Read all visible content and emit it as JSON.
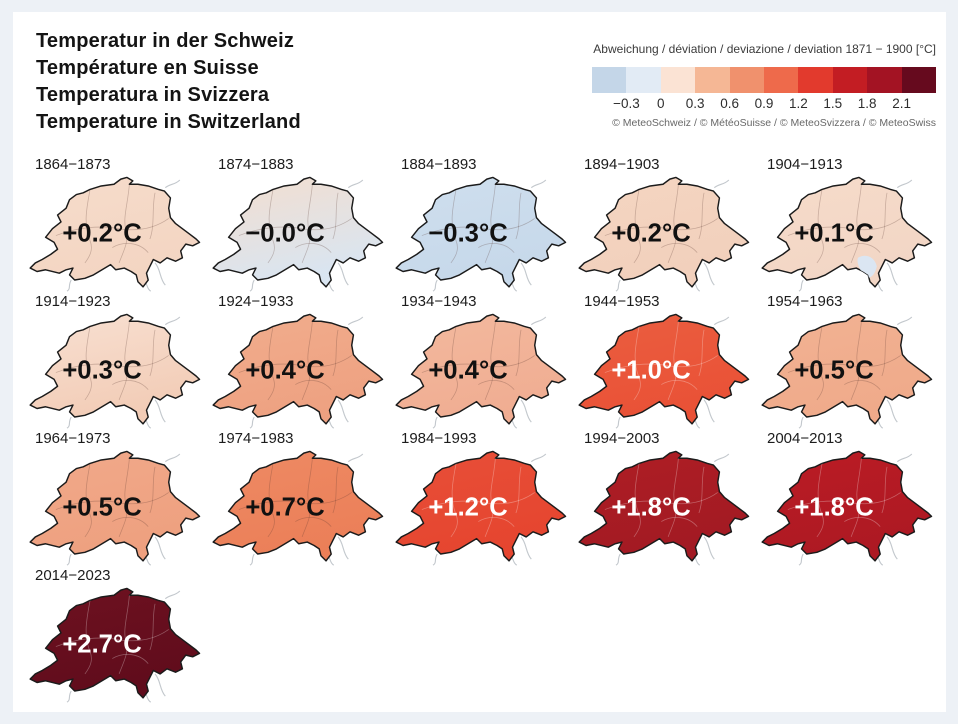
{
  "page": {
    "background": "#edf1f6",
    "card_background": "#ffffff"
  },
  "title": {
    "lines": [
      "Temperatur in der Schweiz",
      "Température en Suisse",
      "Temperatura in Svizzera",
      "Temperature in Switzerland"
    ]
  },
  "legend": {
    "title": "Abweichung / déviation / deviazione / deviation 1871 − 1900 [°C]",
    "ticks": [
      "−0.3",
      "0",
      "0.3",
      "0.6",
      "0.9",
      "1.2",
      "1.5",
      "1.8",
      "2.1"
    ],
    "colors": [
      "#c4d6e8",
      "#e2ebf5",
      "#fbe3d4",
      "#f5b795",
      "#f0916d",
      "#ee6a4b",
      "#e23a2d",
      "#c31d23",
      "#a31323",
      "#660a1e"
    ],
    "copyright": "© MeteoSchweiz / © MétéoSuisse / © MeteoSvizzera / © MeteoSwiss"
  },
  "chart_data": {
    "type": "heatmap",
    "subtype": "choropleth-small-multiples",
    "title": "Temperatur in der Schweiz / Température en Suisse / Temperatura in Svizzera / Temperature in Switzerland",
    "unit": "°C",
    "baseline_period": "1871 − 1900",
    "legend_ticks": [
      -0.3,
      0,
      0.3,
      0.6,
      0.9,
      1.2,
      1.5,
      1.8,
      2.1
    ],
    "maps": [
      {
        "decade": "1864−1873",
        "value": 0.2,
        "label": "+0.2°C",
        "fill": "#f6dccb",
        "fill2": "#f3d5c2",
        "text_color": "#111111"
      },
      {
        "decade": "1874−1883",
        "value": -0.0,
        "label": "−0.0°C",
        "fill": "#f3decf",
        "fill2": "#d9e5f1",
        "text_color": "#111111"
      },
      {
        "decade": "1884−1893",
        "value": -0.3,
        "label": "−0.3°C",
        "fill": "#cfdfee",
        "fill2": "#c6d8ea",
        "text_color": "#111111"
      },
      {
        "decade": "1894−1903",
        "value": 0.2,
        "label": "+0.2°C",
        "fill": "#f4d5c1",
        "fill2": "#f2d0bc",
        "text_color": "#111111"
      },
      {
        "decade": "1904−1913",
        "value": 0.1,
        "label": "+0.1°C",
        "fill": "#f6dbca",
        "fill2": "#f2d6c5",
        "text_color": "#111111",
        "patch": "#dbe6f2"
      },
      {
        "decade": "1914−1923",
        "value": 0.3,
        "label": "+0.3°C",
        "fill": "#f8e0d2",
        "fill2": "#f2ccb6",
        "text_color": "#111111"
      },
      {
        "decade": "1924−1933",
        "value": 0.4,
        "label": "+0.4°C",
        "fill": "#f1ad8d",
        "fill2": "#eea181",
        "text_color": "#111111"
      },
      {
        "decade": "1934−1943",
        "value": 0.4,
        "label": "+0.4°C",
        "fill": "#f3b99e",
        "fill2": "#f0ad92",
        "text_color": "#111111"
      },
      {
        "decade": "1944−1953",
        "value": 1.0,
        "label": "+1.0°C",
        "fill": "#eb5e40",
        "fill2": "#e95136",
        "text_color": "#ffffff"
      },
      {
        "decade": "1954−1963",
        "value": 0.5,
        "label": "+0.5°C",
        "fill": "#f2b293",
        "fill2": "#efaa8a",
        "text_color": "#111111"
      },
      {
        "decade": "1964−1973",
        "value": 0.5,
        "label": "+0.5°C",
        "fill": "#f1a98a",
        "fill2": "#eea07f",
        "text_color": "#111111"
      },
      {
        "decade": "1974−1983",
        "value": 0.7,
        "label": "+0.7°C",
        "fill": "#ee8a64",
        "fill2": "#eb7f58",
        "text_color": "#111111"
      },
      {
        "decade": "1984−1993",
        "value": 1.2,
        "label": "+1.2°C",
        "fill": "#e84f38",
        "fill2": "#e5452f",
        "text_color": "#ffffff"
      },
      {
        "decade": "1994−2003",
        "value": 1.8,
        "label": "+1.8°C",
        "fill": "#af1e24",
        "fill2": "#a21a23",
        "text_color": "#ffffff"
      },
      {
        "decade": "2004−2013",
        "value": 1.8,
        "label": "+1.8°C",
        "fill": "#bb1c24",
        "fill2": "#ad1923",
        "text_color": "#ffffff"
      },
      {
        "decade": "2014−2023",
        "value": 2.7,
        "label": "+2.7°C",
        "fill": "#6e1120",
        "fill2": "#600c1c",
        "text_color": "#ffffff"
      }
    ]
  }
}
